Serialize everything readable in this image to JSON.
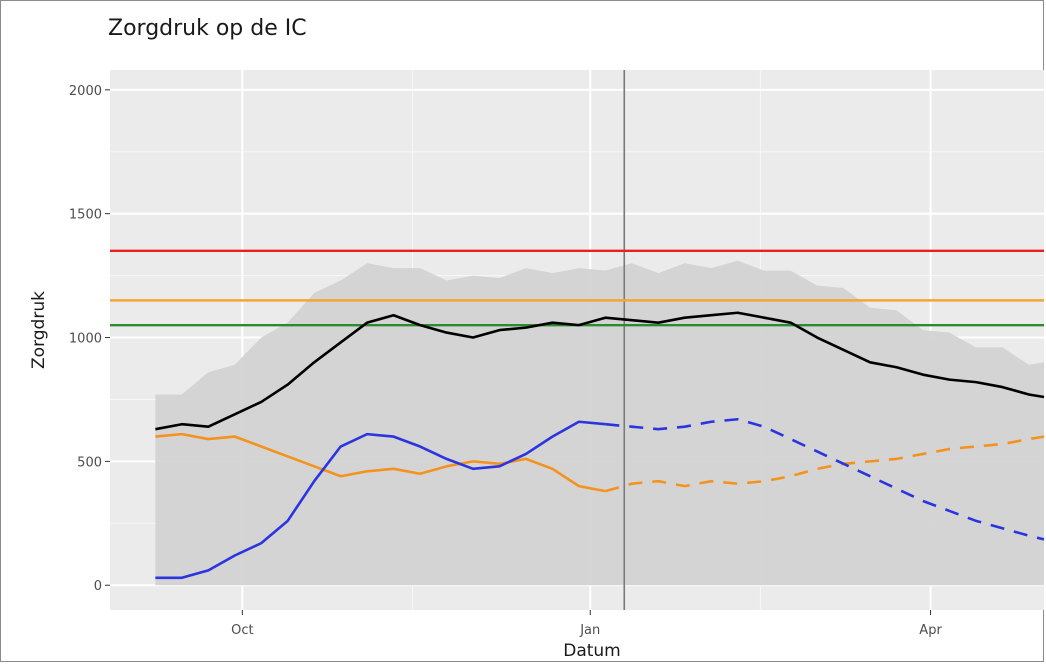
{
  "chart_data": {
    "type": "line",
    "title": "Zorgdruk op de IC",
    "xlabel": "Datum",
    "ylabel": "Zorgdruk",
    "x_axis": {
      "type": "date",
      "range": [
        "2020-08-27",
        "2021-05-01"
      ],
      "ticks": [
        {
          "date": "2020-10-01",
          "label": "Oct"
        },
        {
          "date": "2021-01-01",
          "label": "Jan"
        },
        {
          "date": "2021-04-01",
          "label": "Apr"
        }
      ]
    },
    "y_axis": {
      "range": [
        -100,
        2080
      ],
      "ticks": [
        0,
        500,
        1000,
        1500,
        2000
      ]
    },
    "grid": true,
    "legend": "none",
    "vline_date": "2021-01-10",
    "hlines": [
      {
        "value": 1350,
        "color": "#e8211e"
      },
      {
        "value": 1150,
        "color": "#f5a436"
      },
      {
        "value": 1050,
        "color": "#2f8a2f"
      }
    ],
    "band_upper": {
      "x": [
        "2020-09-08",
        "2020-09-15",
        "2020-09-22",
        "2020-09-29",
        "2020-10-06",
        "2020-10-13",
        "2020-10-20",
        "2020-10-27",
        "2020-11-03",
        "2020-11-10",
        "2020-11-17",
        "2020-11-24",
        "2020-12-01",
        "2020-12-08",
        "2020-12-15",
        "2020-12-22",
        "2020-12-29",
        "2021-01-05",
        "2021-01-12",
        "2021-01-19",
        "2021-01-26",
        "2021-02-02",
        "2021-02-09",
        "2021-02-16",
        "2021-02-23",
        "2021-03-02",
        "2021-03-09",
        "2021-03-16",
        "2021-03-23",
        "2021-03-30",
        "2021-04-06",
        "2021-04-13",
        "2021-04-20",
        "2021-04-27",
        "2021-05-01"
      ],
      "values": [
        770,
        800,
        860,
        920,
        1000,
        1090,
        1180,
        1260,
        1300,
        1310,
        1280,
        1260,
        1250,
        1270,
        1280,
        1290,
        1280,
        1300,
        1300,
        1290,
        1300,
        1310,
        1310,
        1300,
        1270,
        1240,
        1200,
        1150,
        1110,
        1060,
        1020,
        990,
        960,
        920,
        900
      ]
    },
    "series": [
      {
        "color": "#000000",
        "x": [
          "2020-09-08",
          "2020-09-15",
          "2020-09-22",
          "2020-09-29",
          "2020-10-06",
          "2020-10-13",
          "2020-10-20",
          "2020-10-27",
          "2020-11-03",
          "2020-11-10",
          "2020-11-17",
          "2020-11-24",
          "2020-12-01",
          "2020-12-08",
          "2020-12-15",
          "2020-12-22",
          "2020-12-29",
          "2021-01-05",
          "2021-01-12",
          "2021-01-19",
          "2021-01-26",
          "2021-02-02",
          "2021-02-09",
          "2021-02-16",
          "2021-02-23",
          "2021-03-02",
          "2021-03-09",
          "2021-03-16",
          "2021-03-23",
          "2021-03-30",
          "2021-04-06",
          "2021-04-13",
          "2021-04-20",
          "2021-04-27",
          "2021-05-01"
        ],
        "values": [
          630,
          650,
          640,
          690,
          740,
          810,
          900,
          980,
          1060,
          1090,
          1050,
          1020,
          1000,
          1030,
          1040,
          1060,
          1050,
          1080,
          1070,
          1060,
          1080,
          1090,
          1100,
          1080,
          1060,
          1000,
          950,
          900,
          880,
          850,
          830,
          820,
          800,
          770,
          760
        ],
        "dashed_from": null
      },
      {
        "color": "#f5921e",
        "x": [
          "2020-09-08",
          "2020-09-15",
          "2020-09-22",
          "2020-09-29",
          "2020-10-06",
          "2020-10-13",
          "2020-10-20",
          "2020-10-27",
          "2020-11-03",
          "2020-11-10",
          "2020-11-17",
          "2020-11-24",
          "2020-12-01",
          "2020-12-08",
          "2020-12-15",
          "2020-12-22",
          "2020-12-29",
          "2021-01-05",
          "2021-01-12",
          "2021-01-19",
          "2021-01-26",
          "2021-02-02",
          "2021-02-09",
          "2021-02-16",
          "2021-02-23",
          "2021-03-02",
          "2021-03-09",
          "2021-03-16",
          "2021-03-23",
          "2021-03-30",
          "2021-04-06",
          "2021-04-13",
          "2021-04-20",
          "2021-04-27",
          "2021-05-01"
        ],
        "values": [
          600,
          610,
          590,
          600,
          560,
          520,
          480,
          440,
          460,
          470,
          450,
          480,
          500,
          490,
          510,
          470,
          400,
          380,
          410,
          420,
          400,
          420,
          410,
          420,
          440,
          470,
          490,
          500,
          510,
          530,
          550,
          560,
          570,
          590,
          600
        ],
        "dashed_from": "2021-01-10"
      },
      {
        "color": "#2a35e0",
        "x": [
          "2020-09-08",
          "2020-09-15",
          "2020-09-22",
          "2020-09-29",
          "2020-10-06",
          "2020-10-13",
          "2020-10-20",
          "2020-10-27",
          "2020-11-03",
          "2020-11-10",
          "2020-11-17",
          "2020-11-24",
          "2020-12-01",
          "2020-12-08",
          "2020-12-15",
          "2020-12-22",
          "2020-12-29",
          "2021-01-05",
          "2021-01-12",
          "2021-01-19",
          "2021-01-26",
          "2021-02-02",
          "2021-02-09",
          "2021-02-16",
          "2021-02-23",
          "2021-03-02",
          "2021-03-09",
          "2021-03-16",
          "2021-03-23",
          "2021-03-30",
          "2021-04-06",
          "2021-04-13",
          "2021-04-20",
          "2021-04-27",
          "2021-05-01"
        ],
        "values": [
          30,
          30,
          60,
          120,
          170,
          260,
          420,
          560,
          610,
          600,
          560,
          510,
          470,
          480,
          530,
          600,
          660,
          650,
          640,
          630,
          640,
          660,
          670,
          640,
          590,
          540,
          490,
          440,
          390,
          340,
          300,
          260,
          230,
          200,
          185
        ],
        "dashed_from": "2021-01-10"
      }
    ]
  }
}
